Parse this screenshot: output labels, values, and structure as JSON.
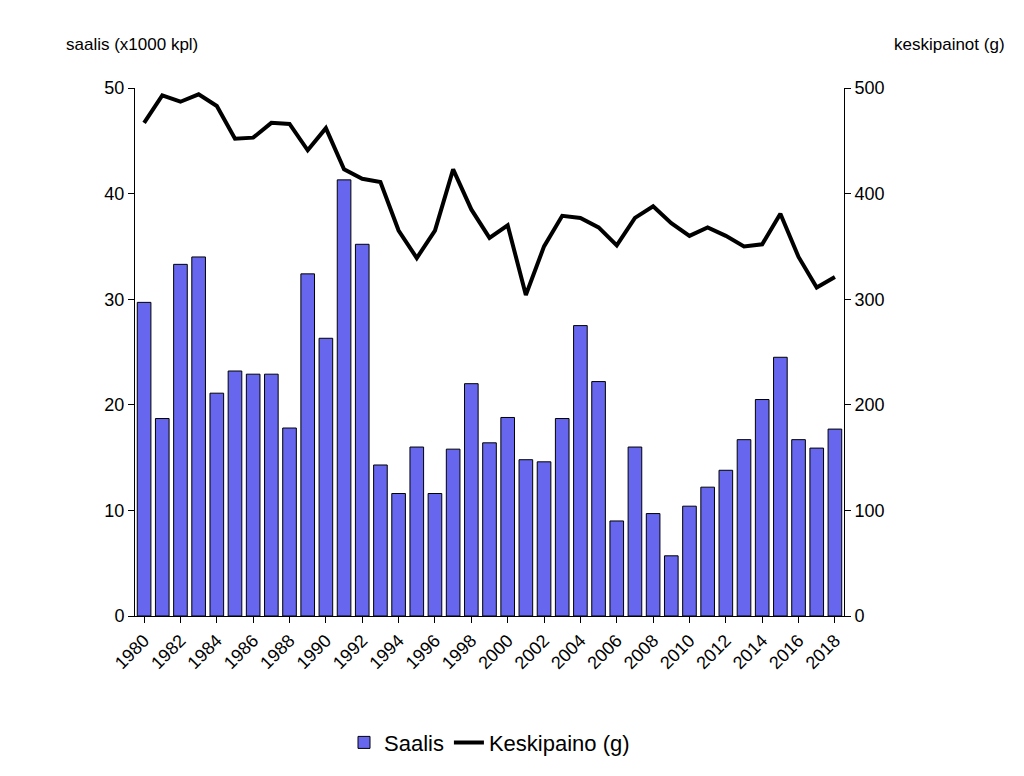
{
  "chart_data": {
    "type": "bar",
    "ylabel": "saalis (x1000 kpl)",
    "y2label": "keskipainot (g)",
    "x": [
      1980,
      1981,
      1982,
      1983,
      1984,
      1985,
      1986,
      1987,
      1988,
      1989,
      1990,
      1991,
      1992,
      1993,
      1994,
      1995,
      1996,
      1997,
      1998,
      1999,
      2000,
      2001,
      2002,
      2003,
      2004,
      2005,
      2006,
      2007,
      2008,
      2009,
      2010,
      2011,
      2012,
      2013,
      2014,
      2015,
      2016,
      2017,
      2018
    ],
    "xlim": [
      1979.5,
      2018.5
    ],
    "xticks": [
      1980,
      1982,
      1984,
      1986,
      1988,
      1990,
      1992,
      1994,
      1996,
      1998,
      2000,
      2002,
      2004,
      2006,
      2008,
      2010,
      2012,
      2014,
      2016,
      2018
    ],
    "ylim": [
      0,
      50
    ],
    "yticks": [
      0,
      10,
      20,
      30,
      40,
      50
    ],
    "y2lim": [
      0,
      500
    ],
    "y2ticks": [
      0,
      100,
      200,
      300,
      400,
      500
    ],
    "grid": false,
    "legend": "bottom",
    "series": [
      {
        "name": "Saalis",
        "type": "bar",
        "color": "#6666ee",
        "values": [
          29.7,
          18.7,
          33.3,
          34.0,
          21.1,
          23.2,
          22.9,
          22.9,
          17.8,
          32.4,
          26.3,
          41.3,
          35.2,
          14.3,
          11.6,
          16.0,
          11.6,
          15.8,
          22.0,
          16.4,
          18.8,
          14.8,
          14.6,
          18.7,
          27.5,
          22.2,
          9.0,
          16.0,
          9.7,
          5.7,
          10.4,
          12.2,
          13.8,
          16.7,
          20.5,
          24.5,
          16.7,
          15.9,
          17.7
        ]
      },
      {
        "name": "Keskipaino (g)",
        "type": "line",
        "axis": "y2",
        "color": "#000000",
        "line_style": "solid",
        "values": [
          467,
          493,
          487,
          494,
          483,
          452,
          453,
          467,
          466,
          441,
          462,
          423,
          414,
          411,
          365,
          339,
          365,
          423,
          385,
          358,
          370,
          304,
          350,
          379,
          377,
          368,
          351,
          377,
          388,
          372,
          360,
          368,
          360,
          350,
          352,
          381,
          340,
          311,
          321
        ]
      }
    ]
  }
}
